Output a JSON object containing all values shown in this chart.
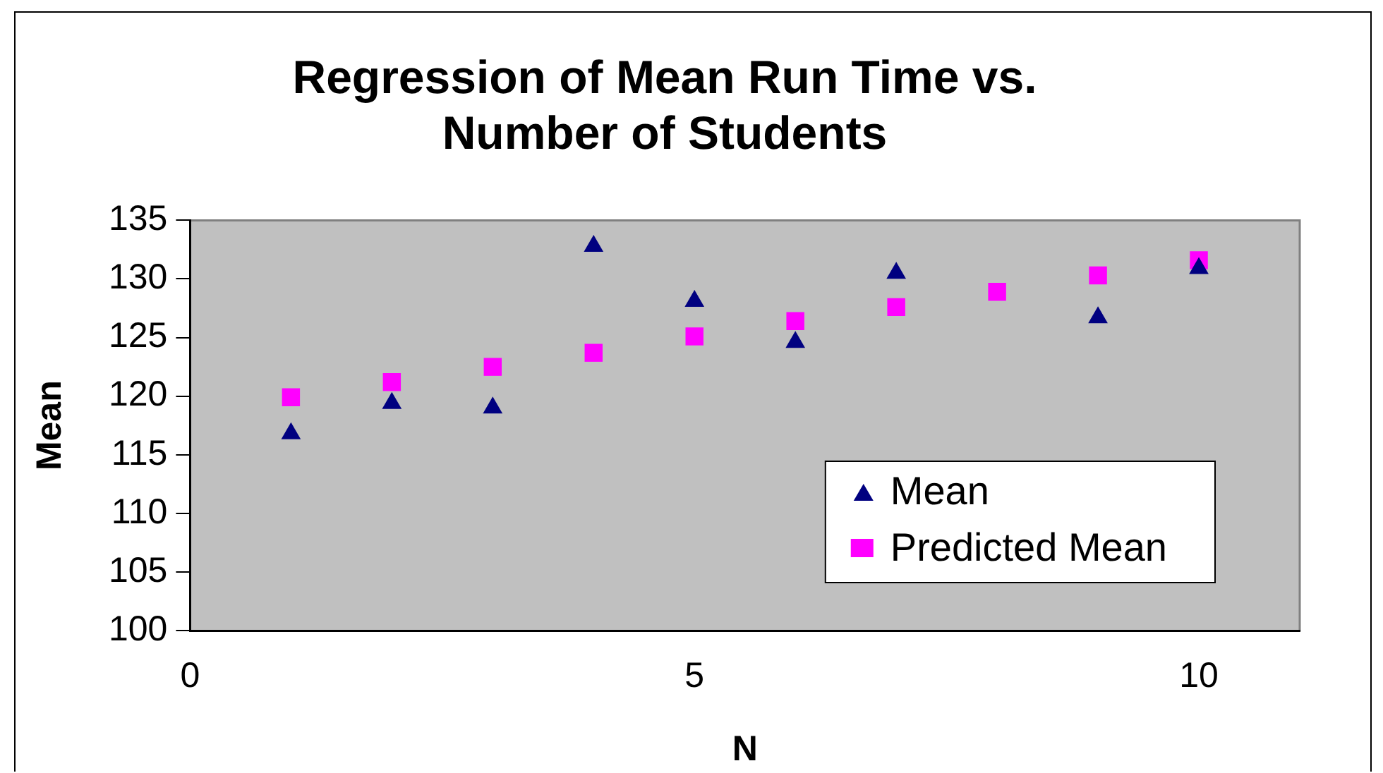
{
  "chart_data": {
    "type": "scatter",
    "title": "Regression of Mean Run Time vs. Number of Students",
    "xlabel": "N",
    "ylabel": "Mean",
    "x": [
      1,
      2,
      3,
      4,
      5,
      6,
      7,
      8,
      9,
      10
    ],
    "series": [
      {
        "name": "Mean",
        "color": "#000080",
        "marker": "triangle",
        "values": [
          116.8,
          119.4,
          119.0,
          132.8,
          128.1,
          124.6,
          130.5,
          null,
          126.7,
          130.9
        ]
      },
      {
        "name": "Predicted Mean",
        "color": "#ff00ff",
        "marker": "square",
        "values": [
          119.9,
          121.2,
          122.5,
          123.7,
          125.1,
          126.4,
          127.6,
          128.9,
          130.3,
          131.6
        ]
      }
    ],
    "xlim": [
      0,
      11
    ],
    "xticks": [
      0,
      5,
      10
    ],
    "ylim": [
      100,
      135
    ],
    "yticks": [
      100,
      105,
      110,
      115,
      120,
      125,
      130,
      135
    ],
    "grid": false,
    "legend": "bottom right"
  }
}
